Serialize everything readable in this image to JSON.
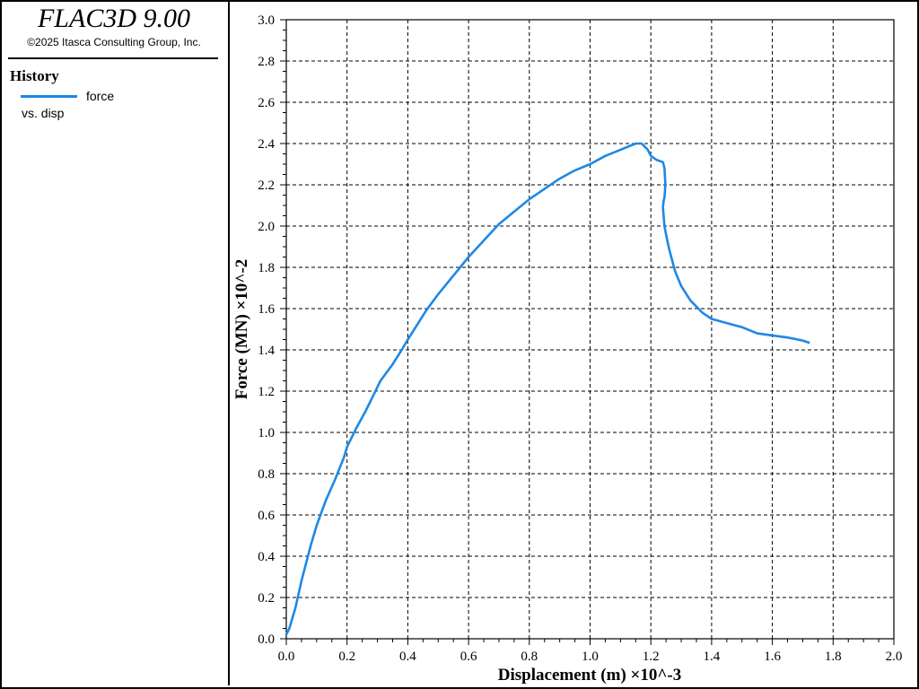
{
  "app": {
    "title": "FLAC3D 9.00",
    "copyright": "©2025 Itasca Consulting Group, Inc."
  },
  "legend": {
    "heading": "History",
    "series_name": "force",
    "series_sub": "vs. disp",
    "color": "#1e88e5"
  },
  "chart_data": {
    "type": "line",
    "xlabel": "Displacement (m)",
    "xlabel_scale": "×10^-3",
    "ylabel": "Force (MN)",
    "ylabel_scale": "×10^-2",
    "xlim": [
      0.0,
      2.0
    ],
    "ylim": [
      0.0,
      3.0
    ],
    "x_ticks": [
      "0.0",
      "0.2",
      "0.4",
      "0.6",
      "0.8",
      "1.0",
      "1.2",
      "1.4",
      "1.6",
      "1.8",
      "2.0"
    ],
    "y_ticks": [
      "0.0",
      "0.2",
      "0.4",
      "0.6",
      "0.8",
      "1.0",
      "1.2",
      "1.4",
      "1.6",
      "1.8",
      "2.0",
      "2.2",
      "2.4",
      "2.6",
      "2.8",
      "3.0"
    ],
    "grid": true,
    "series": [
      {
        "name": "force",
        "color": "#1e88e5",
        "x": [
          0.0,
          0.01,
          0.03,
          0.05,
          0.08,
          0.1,
          0.13,
          0.16,
          0.19,
          0.2,
          0.23,
          0.26,
          0.29,
          0.31,
          0.35,
          0.38,
          0.4,
          0.43,
          0.46,
          0.5,
          0.55,
          0.6,
          0.65,
          0.7,
          0.75,
          0.8,
          0.85,
          0.9,
          0.95,
          1.0,
          1.05,
          1.1,
          1.15,
          1.17,
          1.19,
          1.2,
          1.22,
          1.24,
          1.245,
          1.248,
          1.245,
          1.242,
          1.24,
          1.245,
          1.25,
          1.26,
          1.28,
          1.3,
          1.33,
          1.37,
          1.4,
          1.45,
          1.5,
          1.55,
          1.6,
          1.65,
          1.7,
          1.72
        ],
        "y": [
          0.02,
          0.05,
          0.15,
          0.28,
          0.45,
          0.55,
          0.67,
          0.77,
          0.88,
          0.93,
          1.02,
          1.1,
          1.19,
          1.25,
          1.33,
          1.4,
          1.45,
          1.52,
          1.59,
          1.67,
          1.76,
          1.85,
          1.93,
          2.01,
          2.07,
          2.13,
          2.18,
          2.23,
          2.27,
          2.3,
          2.34,
          2.37,
          2.4,
          2.4,
          2.37,
          2.34,
          2.32,
          2.31,
          2.28,
          2.2,
          2.14,
          2.12,
          2.09,
          2.0,
          1.96,
          1.89,
          1.78,
          1.71,
          1.64,
          1.58,
          1.55,
          1.53,
          1.51,
          1.48,
          1.47,
          1.46,
          1.445,
          1.435
        ]
      }
    ]
  }
}
